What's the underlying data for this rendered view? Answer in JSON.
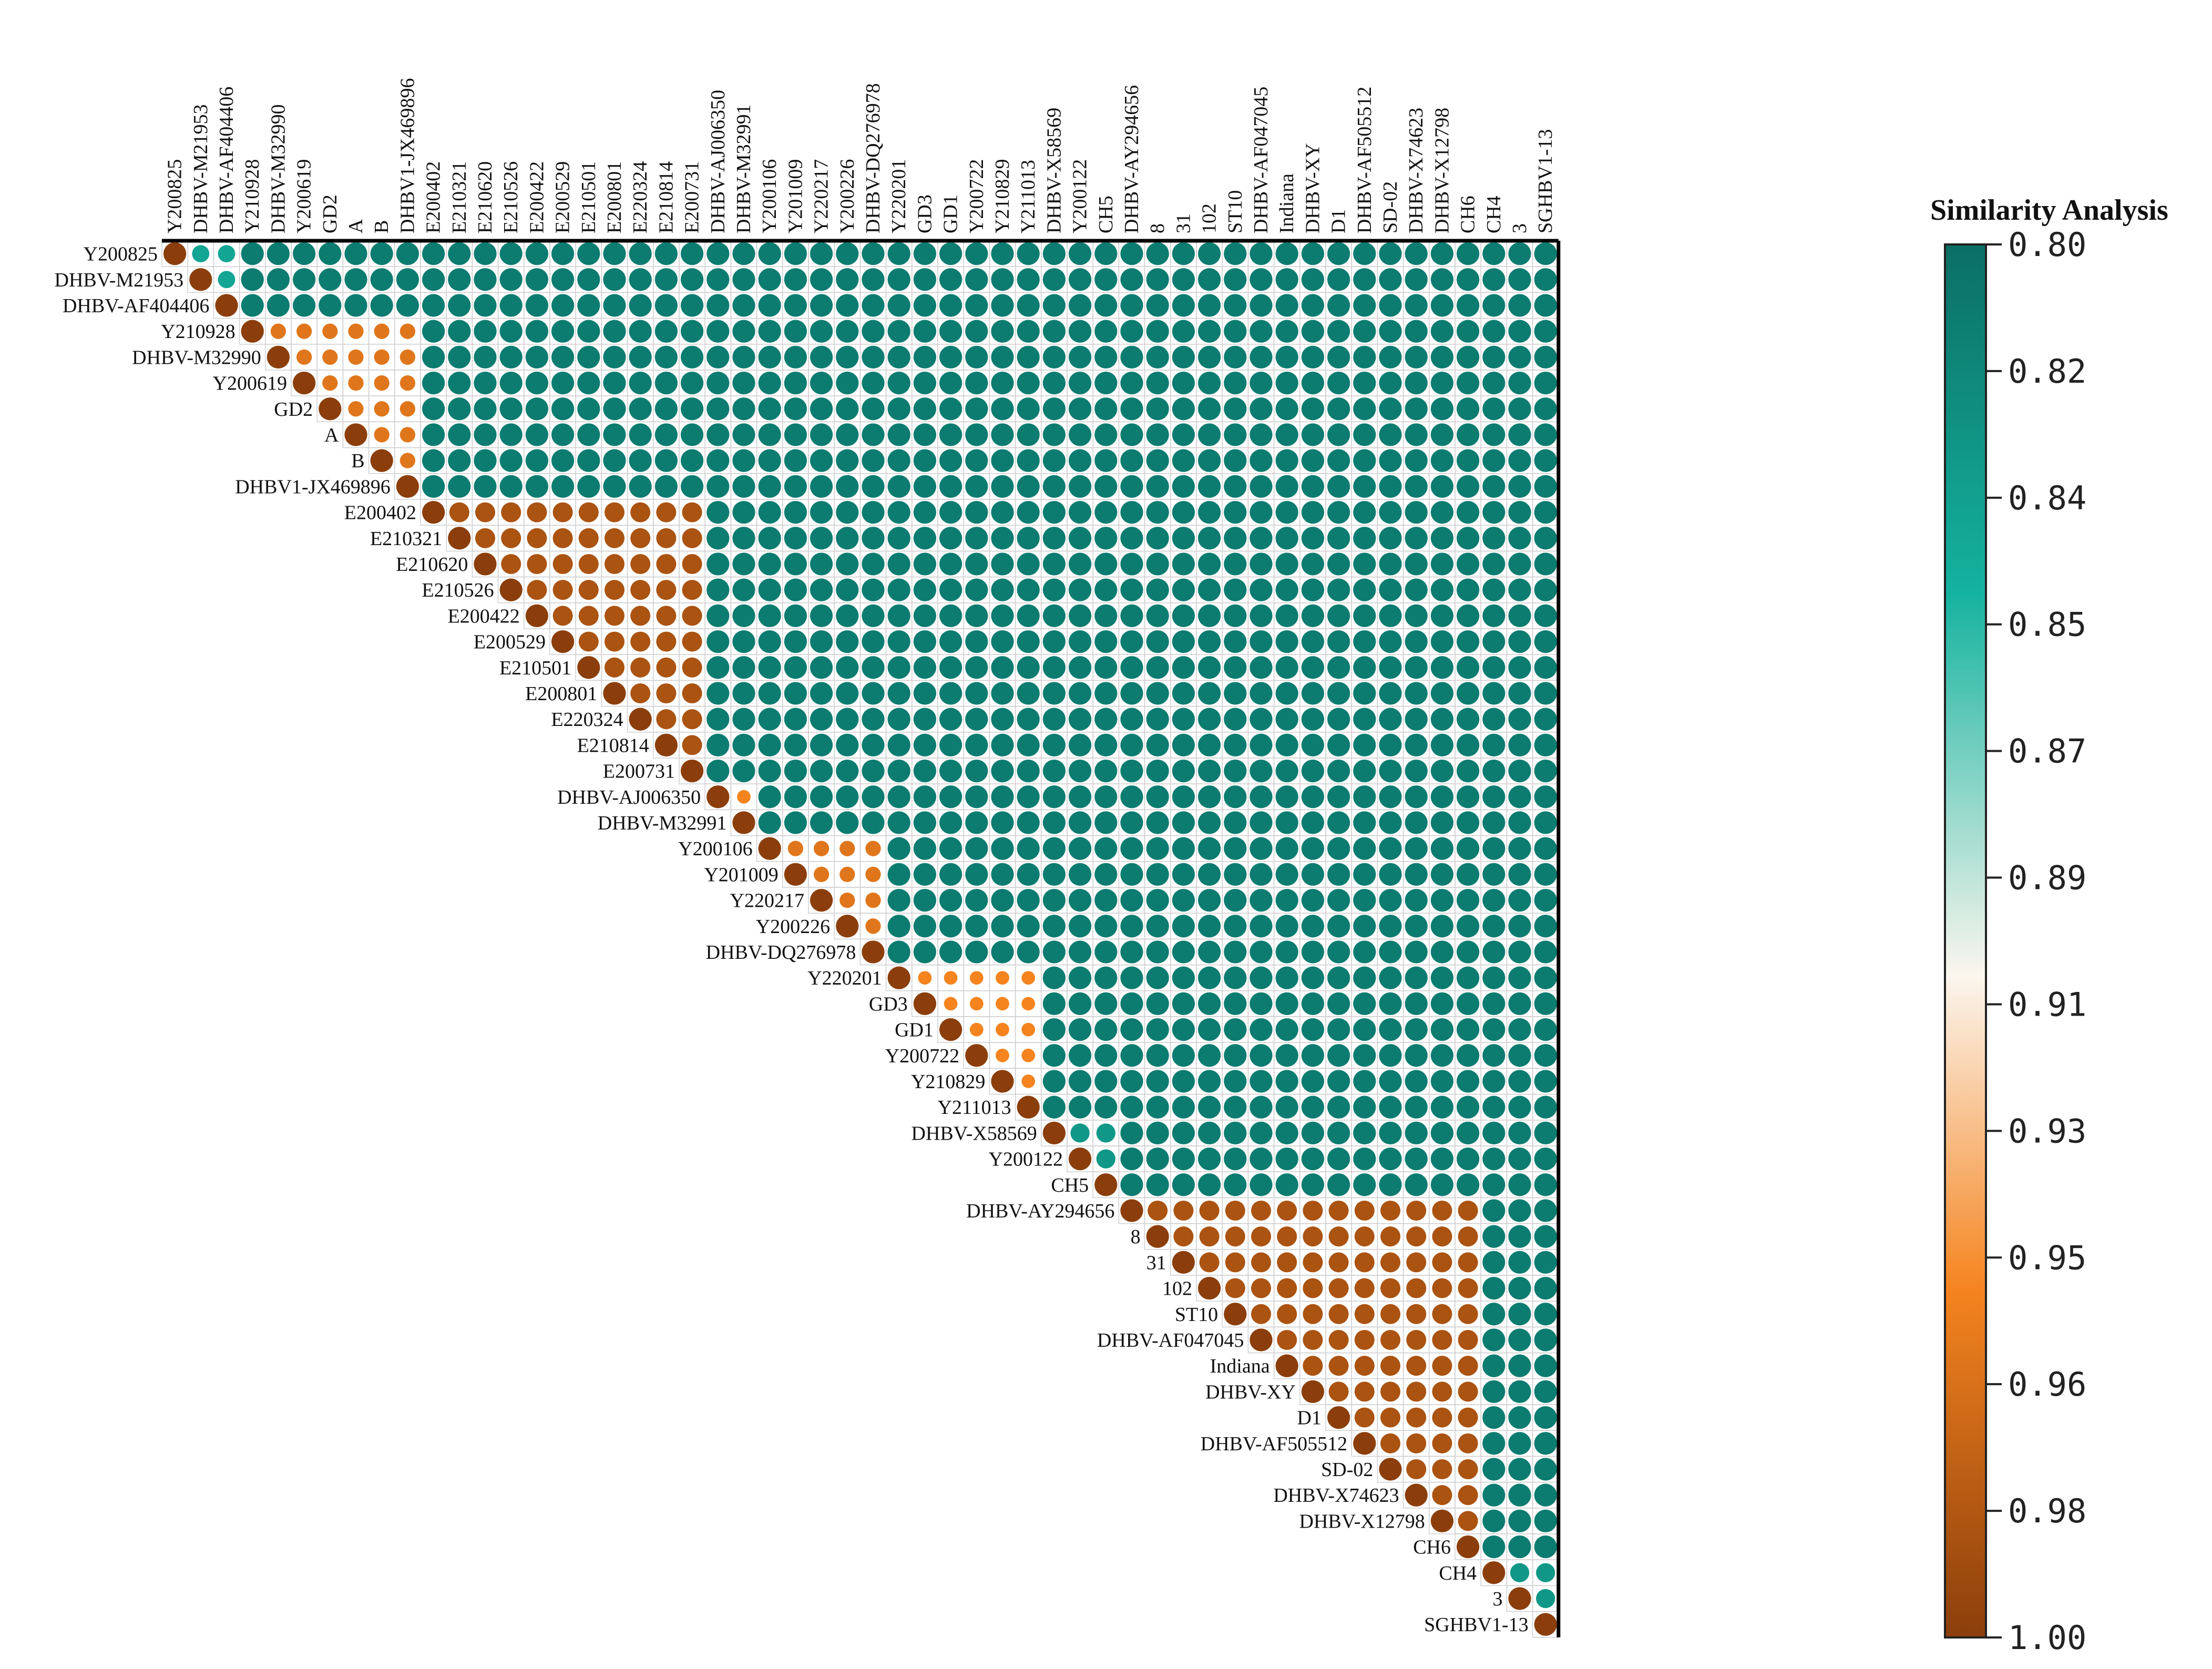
{
  "chart_data": {
    "type": "heatmap",
    "style": "upper-triangle correlogram (circle size and color encode similarity)",
    "title": "Similarity Analysis",
    "labels": [
      "Y200825",
      "DHBV-M21953",
      "DHBV-AF404406",
      "Y210928",
      "DHBV-M32990",
      "Y200619",
      "GD2",
      "A",
      "B",
      "DHBV1-JX469896",
      "E200402",
      "E210321",
      "E210620",
      "E210526",
      "E200422",
      "E200529",
      "E210501",
      "E200801",
      "E220324",
      "E210814",
      "E200731",
      "DHBV-AJ006350",
      "DHBV-M32991",
      "Y200106",
      "Y201009",
      "Y220217",
      "Y200226",
      "DHBV-DQ276978",
      "Y220201",
      "GD3",
      "GD1",
      "Y200722",
      "Y210829",
      "Y211013",
      "DHBV-X58569",
      "Y200122",
      "CH5",
      "DHBV-AY294656",
      "8",
      "31",
      "102",
      "ST10",
      "DHBV-AF047045",
      "Indiana",
      "DHBV-XY",
      "D1",
      "DHBV-AF505512",
      "SD-02",
      "DHBV-X74623",
      "DHBV-X12798",
      "CH6",
      "CH4",
      "3",
      "SGHBV1-13"
    ],
    "groups": [
      {
        "members": [
          0,
          1,
          2
        ],
        "within": 0.84
      },
      {
        "members": [
          3,
          4,
          5,
          6,
          7,
          8,
          9
        ],
        "within": 0.96
      },
      {
        "members": [
          10,
          11,
          12,
          13,
          14,
          15,
          16,
          17,
          18,
          19,
          20
        ],
        "within": 0.985
      },
      {
        "members": [
          21,
          22
        ],
        "within": 0.95
      },
      {
        "members": [
          23,
          24,
          25,
          26,
          27
        ],
        "within": 0.96
      },
      {
        "members": [
          28,
          29,
          30,
          31,
          32,
          33
        ],
        "within": 0.95
      },
      {
        "members": [
          34,
          35,
          36
        ],
        "within": 0.83
      },
      {
        "members": [
          37,
          38,
          39,
          40,
          41,
          42,
          43,
          44,
          45,
          46,
          47,
          48,
          49,
          50
        ],
        "within": 0.985
      },
      {
        "members": [
          51,
          52,
          53
        ],
        "within": 0.83
      }
    ],
    "between_default": 0.81,
    "value_encoding": "each row/column pair value; diagonal = 1.00",
    "colorbar": {
      "ticks": [
        "0.80",
        "0.82",
        "0.84",
        "0.85",
        "0.87",
        "0.89",
        "0.91",
        "0.93",
        "0.95",
        "0.96",
        "0.98",
        "1.00"
      ],
      "range": [
        0.8,
        1.0
      ],
      "stops": [
        {
          "v": 0.8,
          "color": "#0b6e64"
        },
        {
          "v": 0.85,
          "color": "#14b39f"
        },
        {
          "v": 0.905,
          "color": "#fbf6ee"
        },
        {
          "v": 0.95,
          "color": "#f5841f"
        },
        {
          "v": 1.0,
          "color": "#8b3e0b"
        }
      ]
    },
    "legend_position": "right"
  }
}
